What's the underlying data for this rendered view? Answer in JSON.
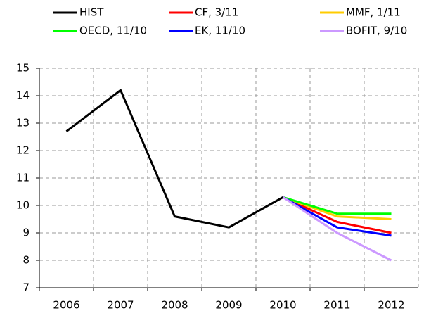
{
  "chart_data": {
    "type": "line",
    "categories": [
      "2006",
      "2007",
      "2008",
      "2009",
      "2010",
      "2011",
      "2012"
    ],
    "series": [
      {
        "name": "HIST",
        "color": "#000000",
        "values": [
          12.7,
          14.2,
          9.6,
          9.2,
          10.3,
          null,
          null
        ]
      },
      {
        "name": "CF, 3/11",
        "color": "#ff0000",
        "values": [
          null,
          null,
          null,
          null,
          10.3,
          9.4,
          9.0
        ]
      },
      {
        "name": "MMF, 1/11",
        "color": "#ffcc00",
        "values": [
          null,
          null,
          null,
          null,
          10.3,
          9.6,
          9.5
        ]
      },
      {
        "name": "OECD, 11/10",
        "color": "#00ff00",
        "values": [
          null,
          null,
          null,
          null,
          10.3,
          9.7,
          9.7
        ]
      },
      {
        "name": "EK, 11/10",
        "color": "#0000ff",
        "values": [
          null,
          null,
          null,
          null,
          10.3,
          9.2,
          8.9
        ]
      },
      {
        "name": "BOFIT, 9/10",
        "color": "#cc99ff",
        "values": [
          null,
          null,
          null,
          null,
          10.3,
          9.0,
          8.0
        ]
      }
    ],
    "ylim": [
      7,
      15
    ],
    "yticks": [
      7,
      8,
      9,
      10,
      11,
      12,
      13,
      14,
      15
    ],
    "grid": true
  }
}
